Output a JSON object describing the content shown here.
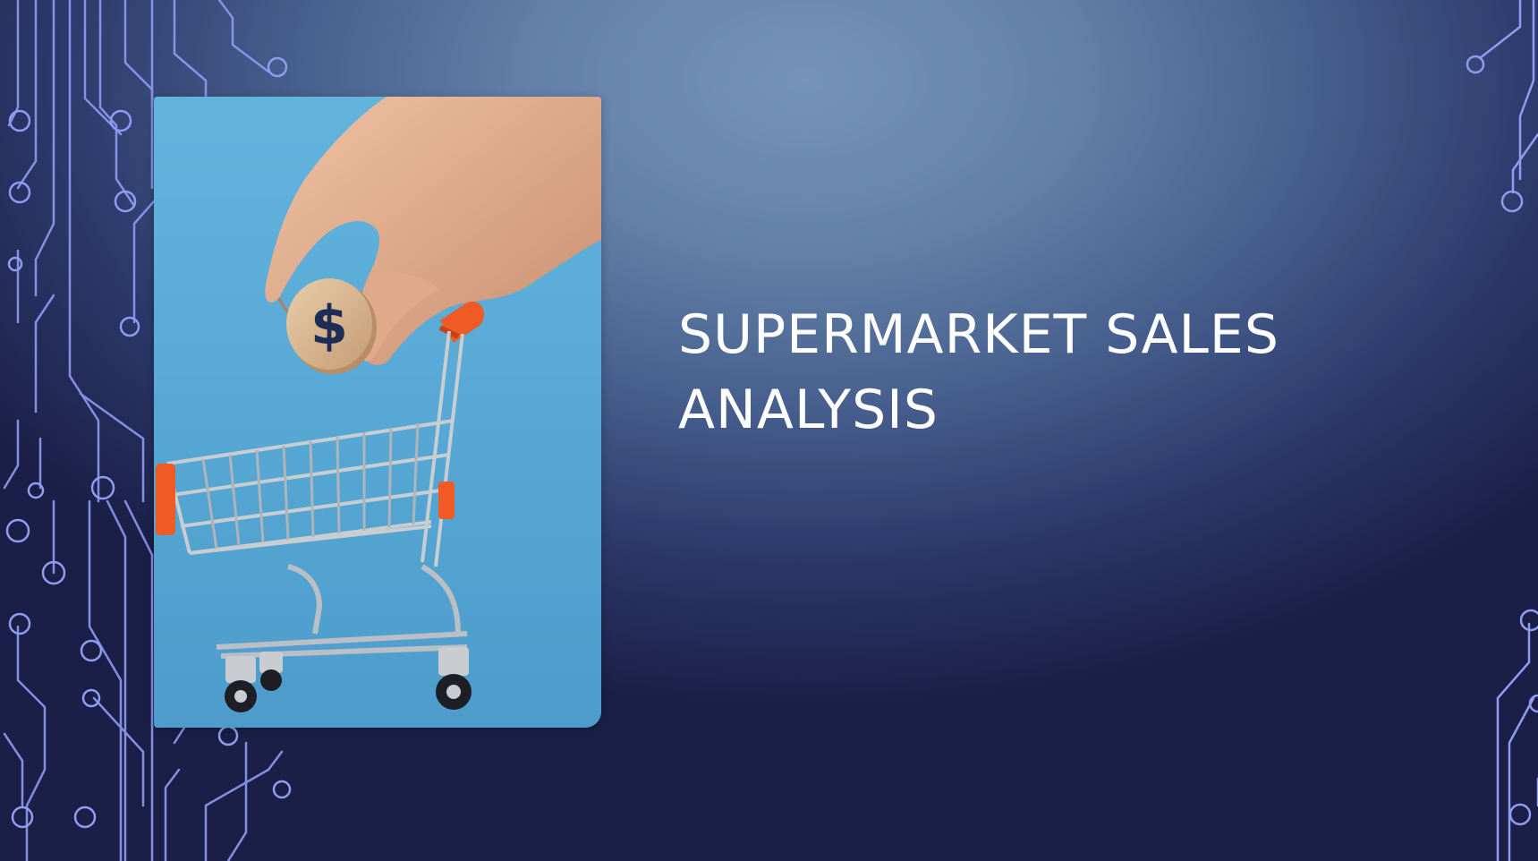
{
  "slide": {
    "title": "SUPERMARKET SALES ANALYSIS",
    "image_icon": "shopping-cart-with-dollar-coin",
    "coin_symbol": "$",
    "decoration": "circuit-board-lines"
  },
  "colors": {
    "background_light": "#7693b8",
    "background_dark": "#1b1f47",
    "title_text": "#ffffff",
    "circuit_line": "#8f9cf0",
    "photo_background": "#5aaad6",
    "cart_handle": "#f05a24"
  }
}
